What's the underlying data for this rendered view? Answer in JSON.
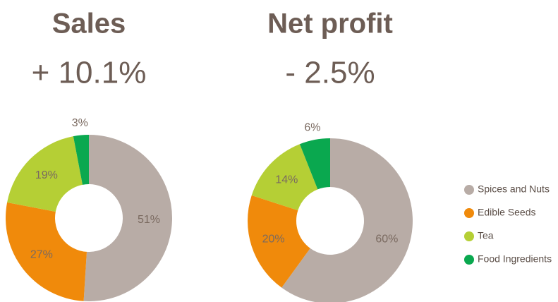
{
  "chart_data": [
    {
      "type": "pie",
      "title": "Sales",
      "subtitle": "+ 10.1%",
      "categories": [
        "Spices and Nuts",
        "Edible Seeds",
        "Tea",
        "Food Ingredients"
      ],
      "values": [
        51,
        27,
        19,
        3
      ],
      "value_labels": [
        "51%",
        "27%",
        "19%",
        "3%"
      ],
      "colors": [
        "#b8aca6",
        "#f08a0b",
        "#b5cf35",
        "#0aa84f"
      ]
    },
    {
      "type": "pie",
      "title": "Net profit",
      "subtitle": "- 2.5%",
      "categories": [
        "Spices and Nuts",
        "Edible Seeds",
        "Tea",
        "Food Ingredients"
      ],
      "values": [
        60,
        20,
        14,
        6
      ],
      "value_labels": [
        "60%",
        "20%",
        "14%",
        "6%"
      ],
      "colors": [
        "#b8aca6",
        "#f08a0b",
        "#b5cf35",
        "#0aa84f"
      ],
      "legend": "right"
    }
  ]
}
